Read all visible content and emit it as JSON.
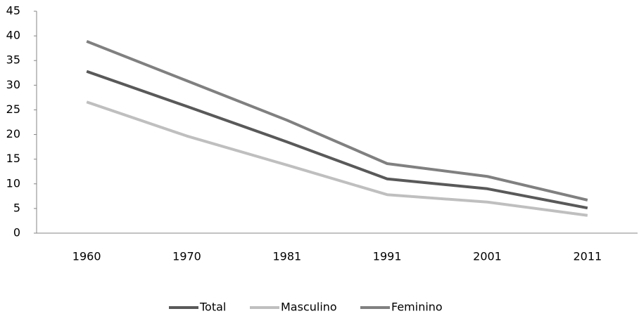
{
  "chart_data": {
    "type": "line",
    "categories": [
      "1960",
      "1970",
      "1981",
      "1991",
      "2001",
      "2011"
    ],
    "series": [
      {
        "name": "Total",
        "color": "#595959",
        "values": [
          32.8,
          25.7,
          18.5,
          11.0,
          9.0,
          5.1
        ]
      },
      {
        "name": "Masculino",
        "color": "#bfbfbf",
        "values": [
          26.6,
          19.7,
          13.8,
          7.8,
          6.3,
          3.6
        ]
      },
      {
        "name": "Feminino",
        "color": "#808080",
        "values": [
          38.9,
          30.9,
          22.9,
          14.1,
          11.5,
          6.7
        ]
      }
    ],
    "ylim": [
      0,
      45
    ],
    "yticks": [
      0,
      5,
      10,
      15,
      20,
      25,
      30,
      35,
      40,
      45
    ],
    "grid": false,
    "legend": "bottom"
  }
}
